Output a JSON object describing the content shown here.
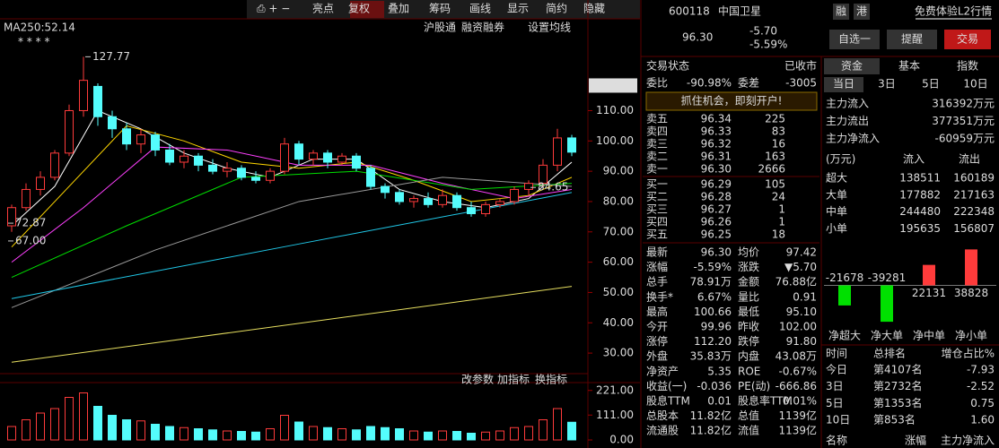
{
  "toolbar": {
    "buttons": [
      "亮点",
      "复权",
      "叠加",
      "筹码",
      "画线",
      "显示",
      "简约",
      "隐藏"
    ]
  },
  "chart_data": [
    {
      "type": "candlestick",
      "indicator": "MA250:52.14",
      "links": [
        "沪股通",
        "融资融券",
        "设置均线"
      ],
      "menu": [
        "改参数",
        "加指标",
        "换指标"
      ],
      "ylim": [
        25,
        140
      ],
      "yticks": [
        {
          "value": 30,
          "label": "30.00"
        },
        {
          "value": 40,
          "label": "40.00"
        },
        {
          "value": 50,
          "label": "50.00"
        },
        {
          "value": 60,
          "label": "60.00"
        },
        {
          "value": 70,
          "label": "70.00"
        },
        {
          "value": 80,
          "label": "80.00"
        },
        {
          "value": 90,
          "label": "90.00"
        },
        {
          "value": 100,
          "label": "100.00"
        },
        {
          "value": 110,
          "label": "110.00"
        }
      ],
      "cursor": 118.28,
      "annotations": [
        {
          "index": 5,
          "value": 127.77
        },
        {
          "index": 0,
          "value": 72.87
        },
        {
          "index": 0,
          "value": 67,
          "label": "67.00"
        },
        {
          "index": 36,
          "value": 84.65
        }
      ],
      "open": [
        72,
        78,
        84,
        88,
        96,
        110,
        118,
        108,
        104,
        99,
        102,
        97,
        93,
        95,
        92,
        90,
        91,
        88,
        87,
        90,
        99,
        94,
        96,
        93,
        95,
        91,
        85,
        83,
        80,
        81,
        79,
        82,
        78,
        76,
        79,
        80,
        84,
        86,
        92,
        101
      ],
      "close": [
        78,
        84,
        88,
        96,
        110,
        120,
        108,
        104,
        99,
        102,
        97,
        93,
        95,
        92,
        90,
        91,
        88,
        87,
        90,
        99,
        94,
        96,
        93,
        95,
        91,
        85,
        83,
        80,
        81,
        79,
        82,
        78,
        76,
        79,
        80,
        84,
        86,
        92,
        101,
        96.3
      ],
      "high": [
        79,
        86,
        90,
        97,
        112,
        127.77,
        119,
        110,
        106,
        104,
        103,
        99,
        97,
        96,
        94,
        93,
        92,
        90,
        91,
        101,
        100,
        97,
        97,
        96,
        96,
        92,
        86,
        84,
        82,
        83,
        84,
        83,
        80,
        80,
        81,
        85,
        87,
        94,
        104,
        102
      ],
      "low": [
        70,
        77,
        82,
        87,
        95,
        108,
        105,
        101,
        97,
        96,
        95,
        92,
        91,
        90,
        89,
        88,
        87,
        86,
        86,
        89,
        92,
        92,
        91,
        92,
        90,
        84,
        81,
        79,
        78,
        78,
        78,
        77,
        75,
        75,
        78,
        79,
        82,
        85,
        90,
        95
      ],
      "lines": [
        {
          "color": "#ffffff",
          "x": [
            0,
            3,
            6,
            9,
            12,
            15,
            18,
            21,
            24,
            27,
            30,
            33,
            36,
            39
          ],
          "values": [
            72,
            85,
            110,
            104,
            96,
            91,
            88,
            94,
            94,
            84,
            80,
            78,
            81,
            93
          ]
        },
        {
          "color": "#ffd700",
          "x": [
            0,
            4,
            8,
            12,
            16,
            20,
            24,
            28,
            32,
            36,
            39
          ],
          "values": [
            65,
            85,
            105,
            100,
            93,
            91,
            93,
            87,
            80,
            82,
            88
          ]
        },
        {
          "color": "#ff40ff",
          "x": [
            0,
            5,
            10,
            15,
            20,
            25,
            30,
            35,
            39
          ],
          "values": [
            60,
            78,
            98,
            97,
            92,
            92,
            86,
            81,
            84
          ]
        },
        {
          "color": "#00e000",
          "x": [
            0,
            8,
            16,
            24,
            32,
            39
          ],
          "values": [
            55,
            72,
            88,
            90,
            84,
            86
          ]
        },
        {
          "color": "#9a9a9a",
          "x": [
            0,
            10,
            20,
            30,
            39
          ],
          "values": [
            45,
            64,
            80,
            88,
            85
          ]
        },
        {
          "color": "#20c8e8",
          "x": [
            0,
            20,
            39
          ],
          "values": [
            48,
            66,
            83
          ]
        },
        {
          "color": "#e8e060",
          "x": [
            0,
            39
          ],
          "values": [
            27,
            52
          ]
        }
      ],
      "volume": {
        "ylim": [
          0,
          240
        ],
        "yticks": [
          {
            "value": 0,
            "label": "0.00"
          },
          {
            "value": 111,
            "label": "111.00"
          },
          {
            "value": 221,
            "label": "221.00"
          }
        ],
        "values": [
          60,
          90,
          120,
          140,
          190,
          210,
          150,
          110,
          90,
          85,
          70,
          60,
          55,
          50,
          45,
          40,
          38,
          35,
          50,
          110,
          80,
          60,
          55,
          50,
          45,
          60,
          55,
          50,
          40,
          35,
          40,
          38,
          30,
          35,
          40,
          55,
          60,
          90,
          140,
          79
        ]
      }
    },
    {
      "type": "bar",
      "categories": [
        "净超大",
        "净大单",
        "净中单",
        "净小单"
      ],
      "values": [
        -21678,
        -39281,
        22131,
        38828
      ],
      "ylim": [
        -45000,
        45000
      ],
      "colors": {
        "up": "#ff3b3b",
        "down": "#00e000"
      }
    }
  ],
  "quote": {
    "code": "600118",
    "name": "中国卫星",
    "tags": [
      "融",
      "港"
    ],
    "link": "免费体验L2行情",
    "price": "96.30",
    "change": "-5.70",
    "pct": "-5.59%",
    "buttons": [
      "自选一",
      "提醒",
      "交易"
    ]
  },
  "orders": {
    "status": [
      "交易状态",
      "已收市"
    ],
    "ratio": [
      "委比",
      "-90.98%",
      "委差",
      "-3005"
    ],
    "promo": "抓住机会，即刻开户!",
    "asks": [
      [
        "卖五",
        "96.34",
        "225"
      ],
      [
        "卖四",
        "96.33",
        "83"
      ],
      [
        "卖三",
        "96.32",
        "16"
      ],
      [
        "卖二",
        "96.31",
        "163"
      ],
      [
        "卖一",
        "96.30",
        "2666"
      ]
    ],
    "bids": [
      [
        "买一",
        "96.29",
        "105"
      ],
      [
        "买二",
        "96.28",
        "24"
      ],
      [
        "买三",
        "96.27",
        "1"
      ],
      [
        "买四",
        "96.26",
        "1"
      ],
      [
        "买五",
        "96.25",
        "18"
      ]
    ],
    "stats": [
      [
        "最新",
        "96.30",
        "均价",
        "97.42"
      ],
      [
        "涨幅",
        "-5.59%",
        "涨跌",
        "▼5.70"
      ],
      [
        "总手",
        "78.91万",
        "金额",
        "76.88亿"
      ],
      [
        "换手*",
        "6.67%",
        "量比",
        "0.91"
      ],
      [
        "最高",
        "100.66",
        "最低",
        "95.10"
      ],
      [
        "今开",
        "99.96",
        "昨收",
        "102.00"
      ],
      [
        "涨停",
        "112.20",
        "跌停",
        "91.80"
      ],
      [
        "外盘",
        "35.83万",
        "内盘",
        "43.08万"
      ],
      [
        "净资产",
        "5.35",
        "ROE",
        "-0.67%"
      ],
      [
        "收益(一)",
        "-0.036",
        "PE(动)",
        "-666.86"
      ],
      [
        "股息TTM",
        "0.01",
        "股息率TTM",
        "0.01%"
      ],
      [
        "总股本",
        "11.82亿",
        "总值",
        "1139亿"
      ],
      [
        "流通股",
        "11.82亿",
        "流值",
        "1139亿"
      ]
    ],
    "tones": [
      [
        "g",
        "g"
      ],
      [
        "g",
        "g"
      ],
      [
        "y",
        "c"
      ],
      [
        "w",
        "w"
      ],
      [
        "g",
        "g"
      ],
      [
        "g",
        "w"
      ],
      [
        "r",
        "g"
      ],
      [
        "r",
        "g"
      ],
      [
        "w",
        "w"
      ],
      [
        "w",
        "w"
      ],
      [
        "w",
        "w"
      ],
      [
        "w",
        "w"
      ],
      [
        "w",
        "w"
      ]
    ]
  },
  "funds": {
    "tabs": [
      "资金",
      "基本",
      "指数"
    ],
    "periods": [
      "当日",
      "3日",
      "5日",
      "10日"
    ],
    "flows": [
      [
        "主力流入",
        "316392万元"
      ],
      [
        "主力流出",
        "377351万元"
      ],
      [
        "主力净流入",
        "-60959万元"
      ]
    ],
    "header": [
      "(万元)",
      "流入",
      "流出"
    ],
    "rows": [
      [
        "超大",
        "138511",
        "160189"
      ],
      [
        "大单",
        "177882",
        "217163"
      ],
      [
        "中单",
        "244480",
        "222348"
      ],
      [
        "小单",
        "195635",
        "156807"
      ]
    ],
    "rank_header": [
      "时间",
      "总排名",
      "增仓占比%"
    ],
    "ranks": [
      [
        "今日",
        "第4107名",
        "-7.93"
      ],
      [
        "3日",
        "第2732名",
        "-2.52"
      ],
      [
        "5日",
        "第1353名",
        "0.75"
      ],
      [
        "10日",
        "第853名",
        "1.60"
      ]
    ],
    "footer": [
      "名称",
      "涨幅",
      "主力净流入"
    ]
  }
}
